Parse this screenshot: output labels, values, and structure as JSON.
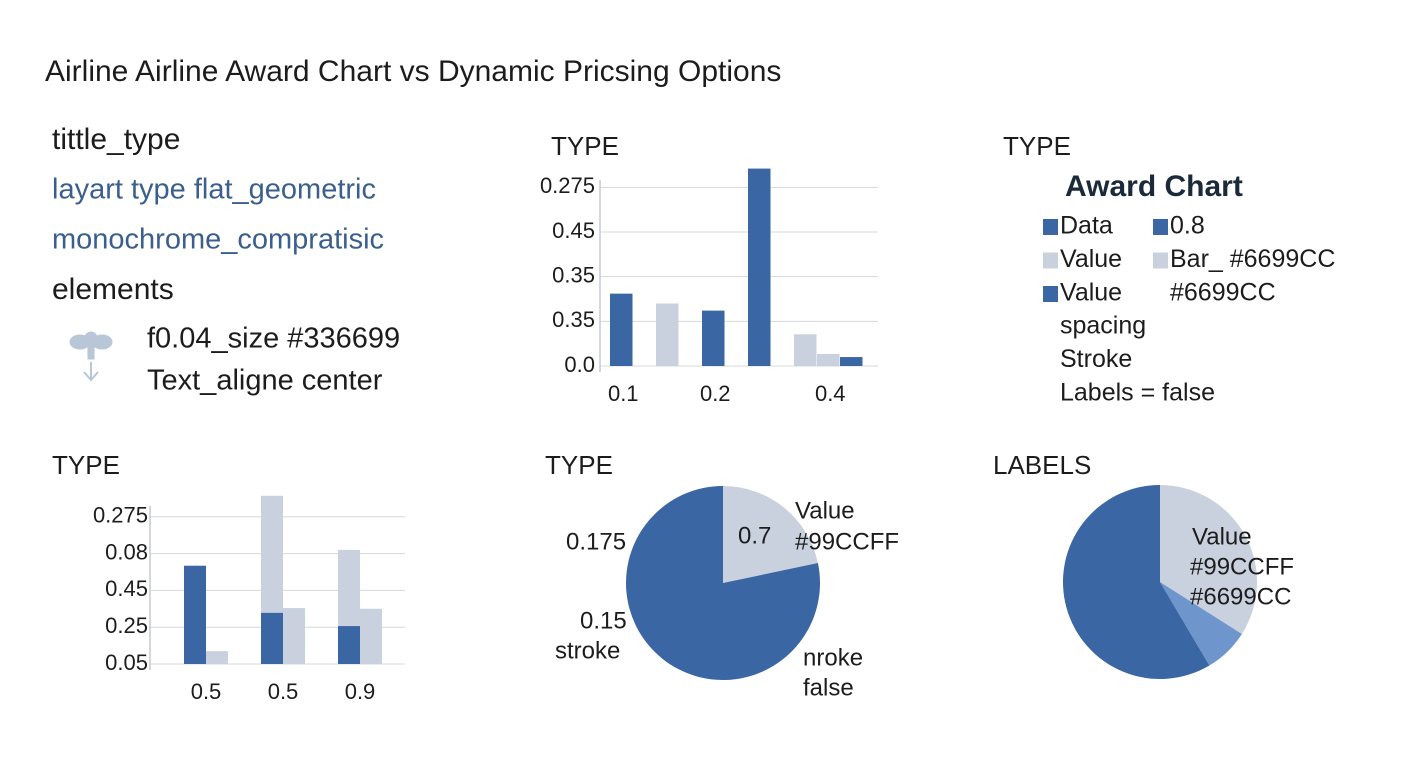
{
  "title": "Airline Airline Award Chart vs Dynamic Pricsing Options",
  "info": {
    "heading": "tittle_type",
    "lines": [
      "layart type flat_geometric",
      "monochrome_compratisic"
    ],
    "subheading": "elements",
    "element_lines": [
      "f0.04_size #336699",
      "Text_aligne center"
    ]
  },
  "legend_panel": {
    "label": "TYPE",
    "title": "Award Chart",
    "items": [
      {
        "text": "Data",
        "color": "#3a66a3"
      },
      {
        "text": "0.8",
        "color": "#3a66a3"
      },
      {
        "text": "Value",
        "color": "#c9d1de"
      },
      {
        "text": "Bar_ #6699CC",
        "color": "#c9d1de"
      },
      {
        "text": "Value",
        "color": "#3a66a3"
      },
      {
        "text": "#6699CC"
      }
    ],
    "lines": [
      "spacing",
      "Stroke",
      "Labels = false"
    ]
  },
  "chart_data": [
    {
      "type": "bar",
      "title": "TYPE",
      "categories": [
        "0.1",
        null,
        null,
        null,
        "0.2",
        null,
        null,
        null,
        null,
        "0.4",
        null
      ],
      "series": [
        {
          "color": "#3a66a3",
          "values": [
            1.62,
            null,
            null,
            null,
            1.24,
            null,
            4.42,
            null,
            null,
            null,
            0.2
          ]
        },
        {
          "color": "#c9d1de",
          "values": [
            null,
            null,
            1.4,
            null,
            null,
            null,
            null,
            null,
            0.71,
            0.27,
            null
          ]
        }
      ],
      "ylim": [
        0,
        4.5
      ],
      "yticks": [
        {
          "value": 0,
          "label": "0.0"
        },
        {
          "value": 1,
          "label": "0.35"
        },
        {
          "value": 2,
          "label": "0.35"
        },
        {
          "value": 3,
          "label": "0.45"
        },
        {
          "value": 4,
          "label": "0.275"
        }
      ],
      "grid": true
    },
    {
      "type": "bar",
      "title": "TYPE",
      "categories": [
        "0.5",
        "0.5",
        "0.9"
      ],
      "series": [
        {
          "color": "#c9d1de",
          "values": [
            null,
            4.57,
            3.1
          ]
        },
        {
          "color": "#3a66a3",
          "values": [
            2.67,
            1.39,
            1.03
          ]
        },
        {
          "color": "#c9d1de",
          "values": [
            0.35,
            1.52,
            1.5
          ]
        }
      ],
      "ylim": [
        0,
        4.7
      ],
      "yticks": [
        {
          "value": 0,
          "label": "0.05"
        },
        {
          "value": 1,
          "label": "0.25"
        },
        {
          "value": 2,
          "label": "0.45"
        },
        {
          "value": 3,
          "label": "0.08"
        },
        {
          "value": 4,
          "label": "0.275"
        }
      ],
      "grid": true
    },
    {
      "type": "pie",
      "title": "TYPE",
      "values": [
        21.7,
        78.3
      ],
      "colors": [
        "#c9d1de",
        "#3a66a3"
      ],
      "annotations": [
        "0.7",
        "Value",
        "#99CCFF",
        "0.175",
        "0.15",
        "stroke",
        "nroke",
        "false"
      ]
    },
    {
      "type": "pie",
      "title": "LABELS",
      "values": [
        34,
        7.5,
        58.5
      ],
      "colors": [
        "#c9d1de",
        "#6f96cc",
        "#3a66a3"
      ],
      "annotations": [
        "Value",
        "#99CCFF",
        "#6699CC"
      ]
    }
  ]
}
